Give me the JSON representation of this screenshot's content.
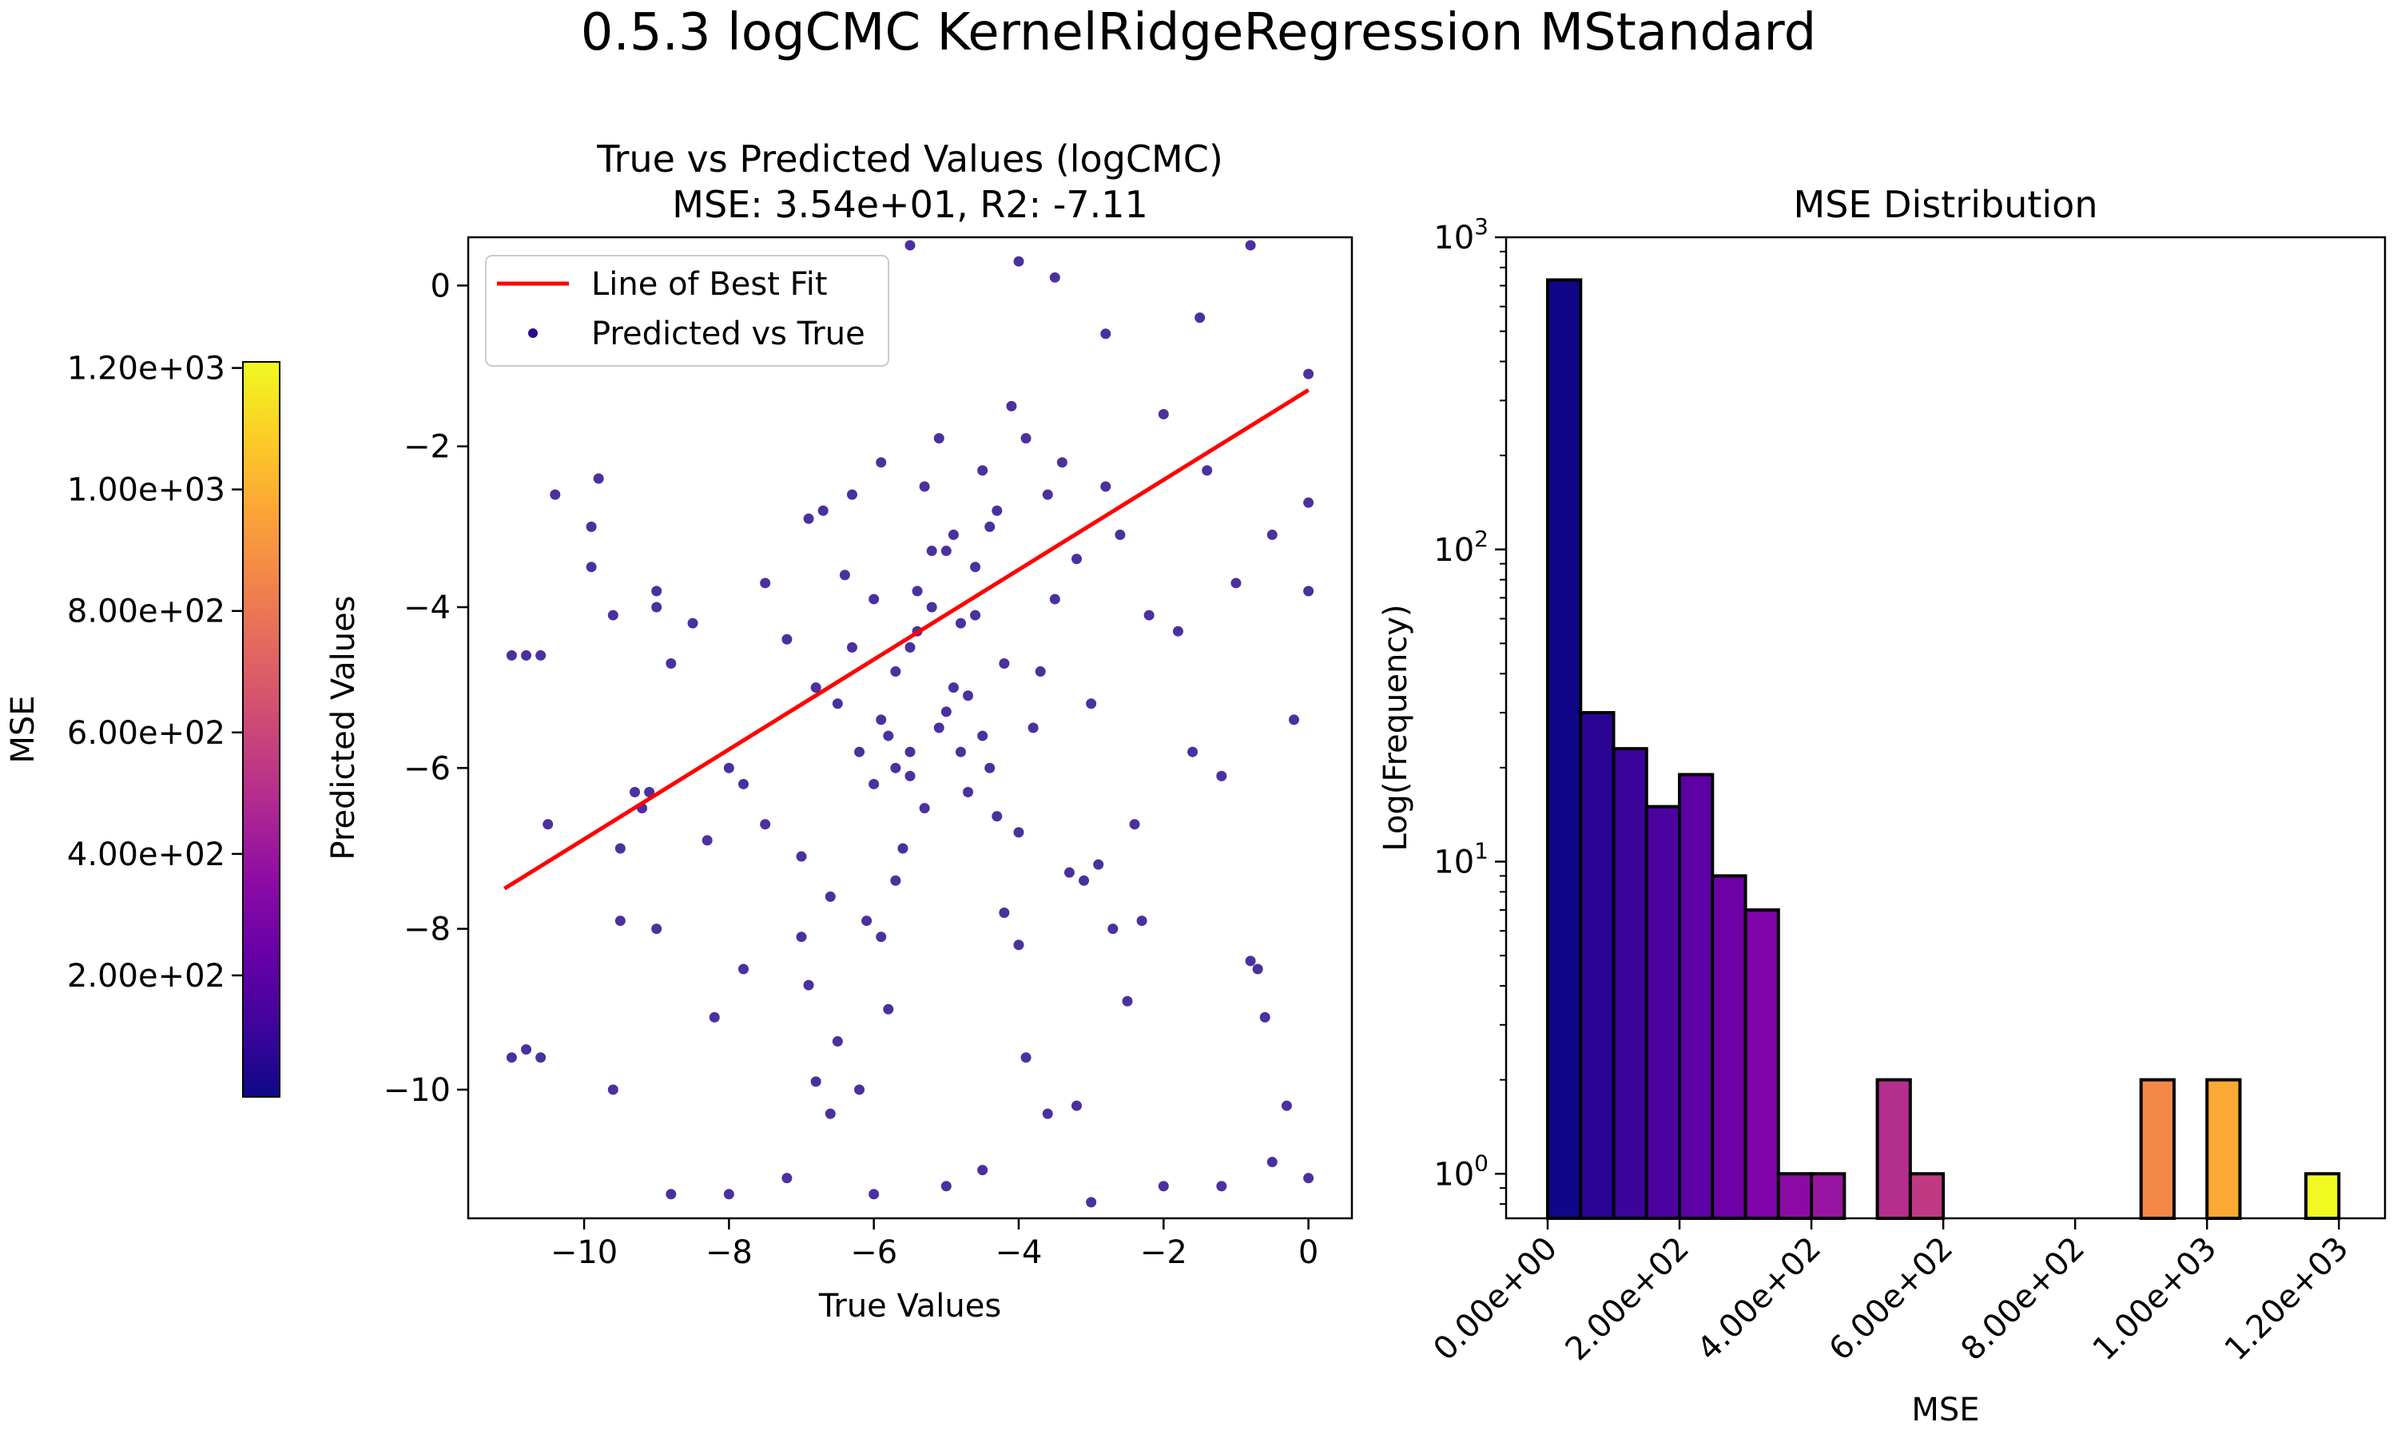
{
  "figure": {
    "suptitle": "0.5.3 logCMC KernelRidgeRegression MStandard",
    "colorbar": {
      "label": "MSE",
      "range": [
        0,
        1210
      ],
      "ticks": [
        "1.20e+03",
        "1.00e+03",
        "8.00e+02",
        "6.00e+02",
        "4.00e+02",
        "2.00e+02"
      ],
      "tick_values": [
        1200,
        1000,
        800,
        600,
        400,
        200
      ],
      "colormap": "plasma"
    }
  },
  "chart_data": [
    {
      "type": "scatter",
      "title": "True vs Predicted Values (logCMC)",
      "subtitle": "MSE: 3.54e+01, R2: -7.11",
      "xlabel": "True Values",
      "ylabel": "Predicted Values",
      "xlim": [
        -11.6,
        0.6
      ],
      "ylim": [
        -11.6,
        0.6
      ],
      "xticks": [
        -10,
        -8,
        -6,
        -4,
        -2,
        0
      ],
      "xtick_labels": [
        "−10",
        "−8",
        "−6",
        "−4",
        "−2",
        "0"
      ],
      "yticks": [
        0,
        -2,
        -4,
        -6,
        -8,
        -10
      ],
      "ytick_labels": [
        "0",
        "−2",
        "−4",
        "−6",
        "−8",
        "−10"
      ],
      "legend_position": "top-left",
      "legend": [
        "Line of Best Fit",
        "Predicted vs True"
      ],
      "best_fit": {
        "x": [
          -11.1,
          0.0
        ],
        "y": [
          -7.5,
          -1.3
        ],
        "color": "#ff0000"
      },
      "point_color": "#2c0c8e",
      "points": [
        [
          -11.0,
          -4.6
        ],
        [
          -10.8,
          -4.6
        ],
        [
          -10.6,
          -4.6
        ],
        [
          -11.0,
          -9.6
        ],
        [
          -10.8,
          -9.5
        ],
        [
          -10.6,
          -9.6
        ],
        [
          -10.5,
          -6.7
        ],
        [
          -10.4,
          -2.6
        ],
        [
          -9.8,
          -2.4
        ],
        [
          -9.9,
          -3.0
        ],
        [
          -9.9,
          -3.5
        ],
        [
          -9.6,
          -4.1
        ],
        [
          -9.5,
          -7.0
        ],
        [
          -9.5,
          -7.9
        ],
        [
          -9.3,
          -6.3
        ],
        [
          -9.1,
          -6.3
        ],
        [
          -9.2,
          -6.5
        ],
        [
          -9.0,
          -3.8
        ],
        [
          -9.0,
          -4.0
        ],
        [
          -8.8,
          -4.7
        ],
        [
          -8.5,
          -4.2
        ],
        [
          -8.3,
          -6.9
        ],
        [
          -8.0,
          -6.0
        ],
        [
          -7.8,
          -6.2
        ],
        [
          -7.5,
          -3.7
        ],
        [
          -7.2,
          -4.4
        ],
        [
          -7.0,
          -7.1
        ],
        [
          -6.8,
          -5.0
        ],
        [
          -6.5,
          -5.2
        ],
        [
          -6.3,
          -2.6
        ],
        [
          -6.0,
          -3.9
        ],
        [
          -5.9,
          -2.2
        ],
        [
          -5.8,
          -5.6
        ],
        [
          -5.7,
          -6.0
        ],
        [
          -5.5,
          -5.8
        ],
        [
          -5.5,
          -6.1
        ],
        [
          -5.4,
          -4.3
        ],
        [
          -5.2,
          -3.3
        ],
        [
          -5.0,
          -5.3
        ],
        [
          -5.0,
          -3.3
        ],
        [
          -4.9,
          -5.0
        ],
        [
          -4.7,
          -6.3
        ],
        [
          -4.6,
          -4.1
        ],
        [
          -4.5,
          -2.3
        ],
        [
          -4.4,
          -6.0
        ],
        [
          -4.3,
          -2.8
        ],
        [
          -4.2,
          -4.7
        ],
        [
          -4.0,
          -6.8
        ],
        [
          -3.8,
          -5.5
        ],
        [
          -3.6,
          -2.6
        ],
        [
          -3.4,
          -2.2
        ],
        [
          -3.2,
          -3.4
        ],
        [
          -3.0,
          -5.2
        ],
        [
          -2.8,
          -2.5
        ],
        [
          -2.6,
          -3.1
        ],
        [
          -2.4,
          -6.7
        ],
        [
          -2.2,
          -4.1
        ],
        [
          -2.0,
          -1.6
        ],
        [
          -1.8,
          -4.3
        ],
        [
          -1.6,
          -5.8
        ],
        [
          -1.4,
          -2.3
        ],
        [
          -1.2,
          -6.1
        ],
        [
          -1.0,
          -3.7
        ],
        [
          -0.8,
          -8.4
        ],
        [
          -0.7,
          -8.5
        ],
        [
          -0.6,
          -9.1
        ],
        [
          -0.5,
          -3.1
        ],
        [
          -0.3,
          -10.2
        ],
        [
          -0.2,
          -5.4
        ],
        [
          0.0,
          -3.8
        ],
        [
          0.0,
          -2.7
        ],
        [
          0.0,
          -1.1
        ],
        [
          -0.8,
          0.5
        ],
        [
          -1.5,
          -0.4
        ],
        [
          -2.8,
          -0.6
        ],
        [
          -3.5,
          0.1
        ],
        [
          -4.0,
          0.3
        ],
        [
          -5.5,
          0.5
        ],
        [
          -4.5,
          -11.0
        ],
        [
          -5.0,
          -11.2
        ],
        [
          -6.0,
          -11.3
        ],
        [
          -7.2,
          -11.1
        ],
        [
          -8.0,
          -11.3
        ],
        [
          -8.8,
          -11.3
        ],
        [
          -3.0,
          -11.4
        ],
        [
          -2.0,
          -11.2
        ],
        [
          -1.2,
          -11.2
        ],
        [
          -0.5,
          -10.9
        ],
        [
          0.0,
          -11.1
        ],
        [
          -6.5,
          -9.4
        ],
        [
          -6.2,
          -10.0
        ],
        [
          -5.8,
          -9.0
        ],
        [
          -7.8,
          -8.5
        ],
        [
          -8.2,
          -9.1
        ],
        [
          -9.0,
          -8.0
        ],
        [
          -9.6,
          -10.0
        ],
        [
          -7.5,
          -6.7
        ],
        [
          -7.0,
          -8.1
        ],
        [
          -6.9,
          -8.7
        ],
        [
          -6.6,
          -7.6
        ],
        [
          -6.1,
          -7.9
        ],
        [
          -5.9,
          -8.1
        ],
        [
          -5.7,
          -7.4
        ],
        [
          -5.6,
          -7.0
        ],
        [
          -5.3,
          -6.5
        ],
        [
          -5.2,
          -4.0
        ],
        [
          -5.1,
          -5.5
        ],
        [
          -4.8,
          -5.8
        ],
        [
          -4.6,
          -3.5
        ],
        [
          -4.4,
          -3.0
        ],
        [
          -4.1,
          -1.5
        ],
        [
          -3.9,
          -1.9
        ],
        [
          -3.7,
          -4.8
        ],
        [
          -3.5,
          -3.9
        ],
        [
          -3.3,
          -7.3
        ],
        [
          -3.1,
          -7.4
        ],
        [
          -2.9,
          -7.2
        ],
        [
          -2.7,
          -8.0
        ],
        [
          -2.5,
          -8.9
        ],
        [
          -2.3,
          -7.9
        ],
        [
          -6.9,
          -2.9
        ],
        [
          -6.7,
          -2.8
        ],
        [
          -6.4,
          -3.6
        ],
        [
          -6.3,
          -4.5
        ],
        [
          -6.2,
          -5.8
        ],
        [
          -6.0,
          -6.2
        ],
        [
          -5.9,
          -5.4
        ],
        [
          -5.7,
          -4.8
        ],
        [
          -5.5,
          -4.5
        ],
        [
          -5.4,
          -3.8
        ],
        [
          -5.3,
          -2.5
        ],
        [
          -5.1,
          -1.9
        ],
        [
          -4.9,
          -3.1
        ],
        [
          -4.8,
          -4.2
        ],
        [
          -4.7,
          -5.1
        ],
        [
          -4.5,
          -5.6
        ],
        [
          -4.3,
          -6.6
        ],
        [
          -4.2,
          -7.8
        ],
        [
          -4.0,
          -8.2
        ],
        [
          -3.9,
          -9.6
        ],
        [
          -3.6,
          -10.3
        ],
        [
          -3.2,
          -10.2
        ],
        [
          -6.6,
          -10.3
        ],
        [
          -6.8,
          -9.9
        ]
      ]
    },
    {
      "type": "bar",
      "title": "MSE Distribution",
      "xlabel": "MSE",
      "ylabel": "Log(Frequency)",
      "yscale": "log",
      "xlim": [
        -63,
        1270
      ],
      "ylim": [
        0.72,
        1000
      ],
      "xticks": [
        0,
        200,
        400,
        600,
        800,
        1000,
        1200
      ],
      "xtick_labels": [
        "0.00e+00",
        "2.00e+02",
        "4.00e+02",
        "6.00e+02",
        "8.00e+02",
        "1.00e+03",
        "1.20e+03"
      ],
      "yticks": [
        1,
        10,
        100,
        1000
      ],
      "bin_width": 50,
      "bins": [
        {
          "x0": 0,
          "count": 730,
          "color": "#0f0787"
        },
        {
          "x0": 50,
          "count": 30,
          "color": "#2a0594"
        },
        {
          "x0": 100,
          "count": 23,
          "color": "#3c049b"
        },
        {
          "x0": 150,
          "count": 15,
          "color": "#4c02a1"
        },
        {
          "x0": 200,
          "count": 19,
          "color": "#5d01a6"
        },
        {
          "x0": 250,
          "count": 9,
          "color": "#6e00a8"
        },
        {
          "x0": 300,
          "count": 7,
          "color": "#7e03a8"
        },
        {
          "x0": 350,
          "count": 1,
          "color": "#8b0aa5"
        },
        {
          "x0": 400,
          "count": 1,
          "color": "#9814a0"
        },
        {
          "x0": 500,
          "count": 2,
          "color": "#b42e8e"
        },
        {
          "x0": 550,
          "count": 1,
          "color": "#c03a83"
        },
        {
          "x0": 900,
          "count": 2,
          "color": "#f48849"
        },
        {
          "x0": 1000,
          "count": 2,
          "color": "#fba835"
        },
        {
          "x0": 1150,
          "count": 1,
          "color": "#f0f921"
        }
      ]
    }
  ]
}
